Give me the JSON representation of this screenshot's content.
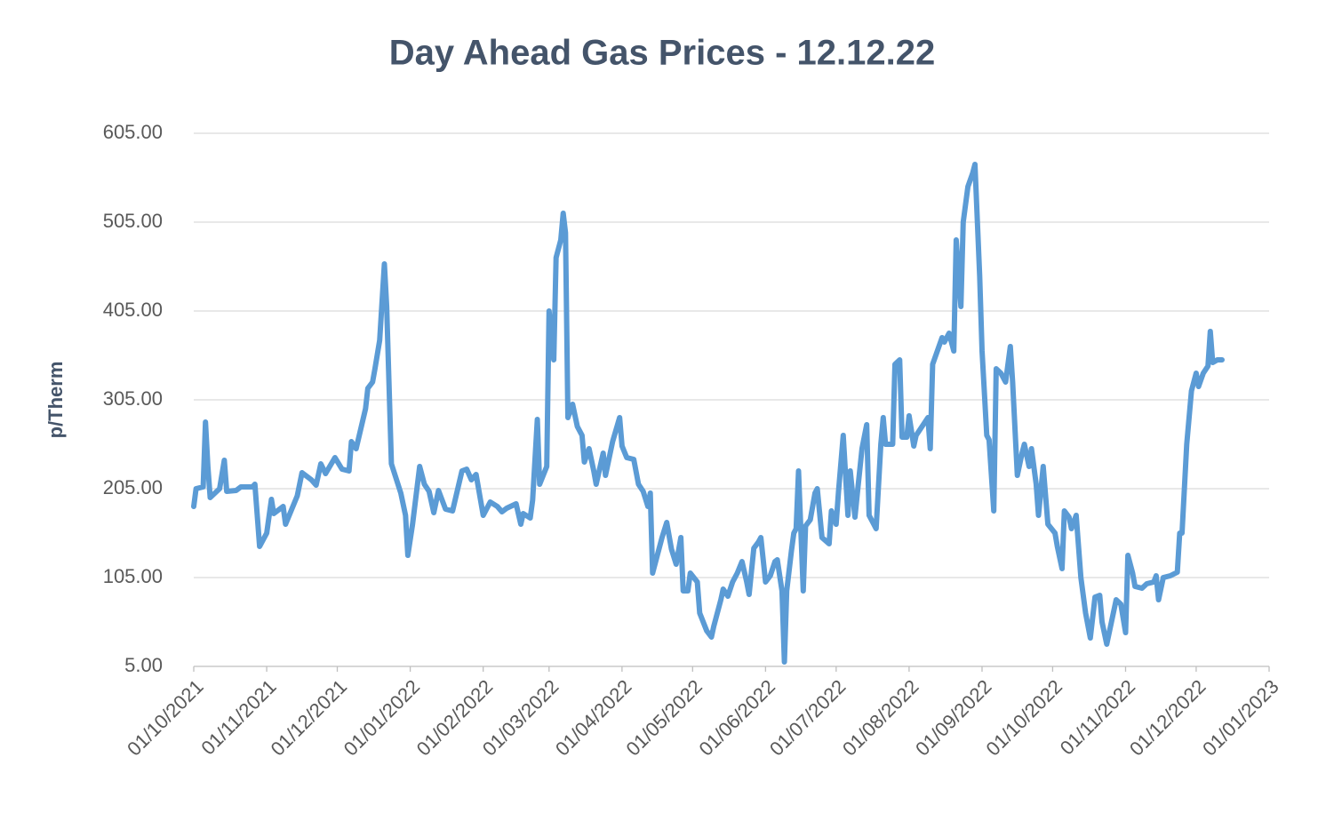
{
  "chart_data": {
    "type": "line",
    "title": "Day Ahead Gas Prices - 12.12.22",
    "y_label": "p/Therm",
    "color": "#5b9bd5",
    "grid": true,
    "ylim": [
      5,
      605
    ],
    "yticks": [
      {
        "value": 5,
        "label": "5.00"
      },
      {
        "value": 105,
        "label": "105.00"
      },
      {
        "value": 205,
        "label": "205.00"
      },
      {
        "value": 305,
        "label": "305.00"
      },
      {
        "value": 405,
        "label": "405.00"
      },
      {
        "value": 505,
        "label": "505.00"
      },
      {
        "value": 605,
        "label": "605.00"
      }
    ],
    "xlim": [
      "2021-10-01",
      "2023-01-01"
    ],
    "xticks": [
      {
        "value": "2021-10-01",
        "label": "01/10/2021"
      },
      {
        "value": "2021-11-01",
        "label": "01/11/2021"
      },
      {
        "value": "2021-12-01",
        "label": "01/12/2021"
      },
      {
        "value": "2022-01-01",
        "label": "01/01/2022"
      },
      {
        "value": "2022-02-01",
        "label": "01/02/2022"
      },
      {
        "value": "2022-03-01",
        "label": "01/03/2022"
      },
      {
        "value": "2022-04-01",
        "label": "01/04/2022"
      },
      {
        "value": "2022-05-01",
        "label": "01/05/2022"
      },
      {
        "value": "2022-06-01",
        "label": "01/06/2022"
      },
      {
        "value": "2022-07-01",
        "label": "01/07/2022"
      },
      {
        "value": "2022-08-01",
        "label": "01/08/2022"
      },
      {
        "value": "2022-09-01",
        "label": "01/09/2022"
      },
      {
        "value": "2022-10-01",
        "label": "01/10/2022"
      },
      {
        "value": "2022-11-01",
        "label": "01/11/2022"
      },
      {
        "value": "2022-12-01",
        "label": "01/12/2022"
      },
      {
        "value": "2023-01-01",
        "label": "01/01/2023"
      }
    ],
    "x": [
      "2021-10-01",
      "2021-10-02",
      "2021-10-05",
      "2021-10-06",
      "2021-10-07",
      "2021-10-08",
      "2021-10-12",
      "2021-10-14",
      "2021-10-15",
      "2021-10-19",
      "2021-10-21",
      "2021-10-26",
      "2021-10-27",
      "2021-10-29",
      "2021-11-01",
      "2021-11-03",
      "2021-11-04",
      "2021-11-08",
      "2021-11-09",
      "2021-11-14",
      "2021-11-16",
      "2021-11-20",
      "2021-11-22",
      "2021-11-24",
      "2021-11-26",
      "2021-11-30",
      "2021-12-03",
      "2021-12-06",
      "2021-12-07",
      "2021-12-09",
      "2021-12-13",
      "2021-12-14",
      "2021-12-16",
      "2021-12-17",
      "2021-12-19",
      "2021-12-21",
      "2021-12-22",
      "2021-12-24",
      "2021-12-28",
      "2021-12-30",
      "2021-12-31",
      "2022-01-02",
      "2022-01-05",
      "2022-01-07",
      "2022-01-09",
      "2022-01-11",
      "2022-01-13",
      "2022-01-16",
      "2022-01-19",
      "2022-01-23",
      "2022-01-25",
      "2022-01-27",
      "2022-01-29",
      "2022-02-01",
      "2022-02-04",
      "2022-02-07",
      "2022-02-09",
      "2022-02-11",
      "2022-02-15",
      "2022-02-17",
      "2022-02-18",
      "2022-02-21",
      "2022-02-22",
      "2022-02-24",
      "2022-02-25",
      "2022-02-28",
      "2022-03-01",
      "2022-03-03",
      "2022-03-04",
      "2022-03-06",
      "2022-03-07",
      "2022-03-08",
      "2022-03-09",
      "2022-03-11",
      "2022-03-13",
      "2022-03-15",
      "2022-03-16",
      "2022-03-18",
      "2022-03-20",
      "2022-03-21",
      "2022-03-24",
      "2022-03-25",
      "2022-03-28",
      "2022-03-31",
      "2022-04-01",
      "2022-04-03",
      "2022-04-06",
      "2022-04-08",
      "2022-04-10",
      "2022-04-12",
      "2022-04-13",
      "2022-04-14",
      "2022-04-16",
      "2022-04-18",
      "2022-04-20",
      "2022-04-22",
      "2022-04-24",
      "2022-04-26",
      "2022-04-27",
      "2022-04-29",
      "2022-04-30",
      "2022-05-03",
      "2022-05-04",
      "2022-05-07",
      "2022-05-09",
      "2022-05-10",
      "2022-05-13",
      "2022-05-14",
      "2022-05-16",
      "2022-05-18",
      "2022-05-20",
      "2022-05-22",
      "2022-05-24",
      "2022-05-25",
      "2022-05-27",
      "2022-05-29",
      "2022-05-30",
      "2022-06-01",
      "2022-06-03",
      "2022-06-05",
      "2022-06-06",
      "2022-06-08",
      "2022-06-09",
      "2022-06-10",
      "2022-06-12",
      "2022-06-13",
      "2022-06-14",
      "2022-06-15",
      "2022-06-17",
      "2022-06-18",
      "2022-06-20",
      "2022-06-22",
      "2022-06-23",
      "2022-06-25",
      "2022-06-28",
      "2022-06-29",
      "2022-07-01",
      "2022-07-02",
      "2022-07-04",
      "2022-07-06",
      "2022-07-07",
      "2022-07-09",
      "2022-07-10",
      "2022-07-12",
      "2022-07-14",
      "2022-07-15",
      "2022-07-17",
      "2022-07-18",
      "2022-07-20",
      "2022-07-21",
      "2022-07-22",
      "2022-07-23",
      "2022-07-25",
      "2022-07-26",
      "2022-07-28",
      "2022-07-29",
      "2022-07-31",
      "2022-08-01",
      "2022-08-03",
      "2022-08-04",
      "2022-08-07",
      "2022-08-09",
      "2022-08-10",
      "2022-08-11",
      "2022-08-13",
      "2022-08-15",
      "2022-08-16",
      "2022-08-18",
      "2022-08-20",
      "2022-08-21",
      "2022-08-23",
      "2022-08-24",
      "2022-08-26",
      "2022-08-28",
      "2022-08-29",
      "2022-08-31",
      "2022-09-01",
      "2022-09-03",
      "2022-09-04",
      "2022-09-06",
      "2022-09-07",
      "2022-09-09",
      "2022-09-11",
      "2022-09-13",
      "2022-09-14",
      "2022-09-16",
      "2022-09-18",
      "2022-09-19",
      "2022-09-21",
      "2022-09-22",
      "2022-09-24",
      "2022-09-25",
      "2022-09-27",
      "2022-09-29",
      "2022-10-02",
      "2022-10-03",
      "2022-10-05",
      "2022-10-06",
      "2022-10-08",
      "2022-10-09",
      "2022-10-11",
      "2022-10-13",
      "2022-10-15",
      "2022-10-17",
      "2022-10-19",
      "2022-10-21",
      "2022-10-22",
      "2022-10-24",
      "2022-10-26",
      "2022-10-28",
      "2022-10-30",
      "2022-11-01",
      "2022-11-02",
      "2022-11-04",
      "2022-11-05",
      "2022-11-08",
      "2022-11-10",
      "2022-11-13",
      "2022-11-14",
      "2022-11-15",
      "2022-11-17",
      "2022-11-20",
      "2022-11-23",
      "2022-11-24",
      "2022-11-25",
      "2022-11-27",
      "2022-11-29",
      "2022-12-01",
      "2022-12-02",
      "2022-12-04",
      "2022-12-06",
      "2022-12-07",
      "2022-12-08",
      "2022-12-10",
      "2022-12-12"
    ],
    "values": [
      185,
      205,
      207,
      280,
      230,
      195,
      205,
      237,
      202,
      203,
      207,
      207,
      210,
      140,
      155,
      193,
      177,
      185,
      165,
      197,
      223,
      215,
      209,
      233,
      222,
      240,
      227,
      225,
      258,
      250,
      295,
      318,
      325,
      340,
      372,
      458,
      410,
      233,
      200,
      175,
      130,
      165,
      230,
      210,
      202,
      178,
      203,
      182,
      180,
      225,
      227,
      215,
      221,
      175,
      190,
      185,
      179,
      183,
      188,
      165,
      177,
      172,
      192,
      283,
      210,
      230,
      405,
      350,
      465,
      485,
      515,
      493,
      285,
      300,
      275,
      265,
      235,
      250,
      225,
      210,
      245,
      220,
      258,
      285,
      253,
      240,
      238,
      210,
      202,
      185,
      200,
      110,
      130,
      150,
      167,
      137,
      120,
      150,
      90,
      90,
      110,
      100,
      65,
      45,
      38,
      50,
      80,
      92,
      84,
      100,
      110,
      123,
      100,
      86,
      138,
      145,
      150,
      100,
      107,
      123,
      125,
      90,
      10,
      90,
      135,
      155,
      160,
      225,
      90,
      163,
      170,
      200,
      205,
      150,
      143,
      180,
      165,
      202,
      265,
      175,
      225,
      173,
      200,
      250,
      277,
      175,
      165,
      160,
      255,
      285,
      255,
      255,
      255,
      345,
      350,
      263,
      263,
      287,
      253,
      265,
      277,
      285,
      250,
      345,
      360,
      375,
      370,
      380,
      360,
      485,
      410,
      505,
      545,
      560,
      570,
      445,
      360,
      265,
      260,
      180,
      340,
      335,
      325,
      365,
      325,
      220,
      245,
      255,
      230,
      250,
      210,
      175,
      230,
      165,
      155,
      140,
      115,
      180,
      173,
      160,
      175,
      105,
      65,
      37,
      83,
      85,
      55,
      30,
      55,
      80,
      75,
      43,
      130,
      110,
      95,
      93,
      98,
      100,
      107,
      80,
      105,
      107,
      111,
      155,
      155,
      255,
      315,
      335,
      320,
      335,
      343,
      382,
      347,
      350,
      350
    ]
  }
}
